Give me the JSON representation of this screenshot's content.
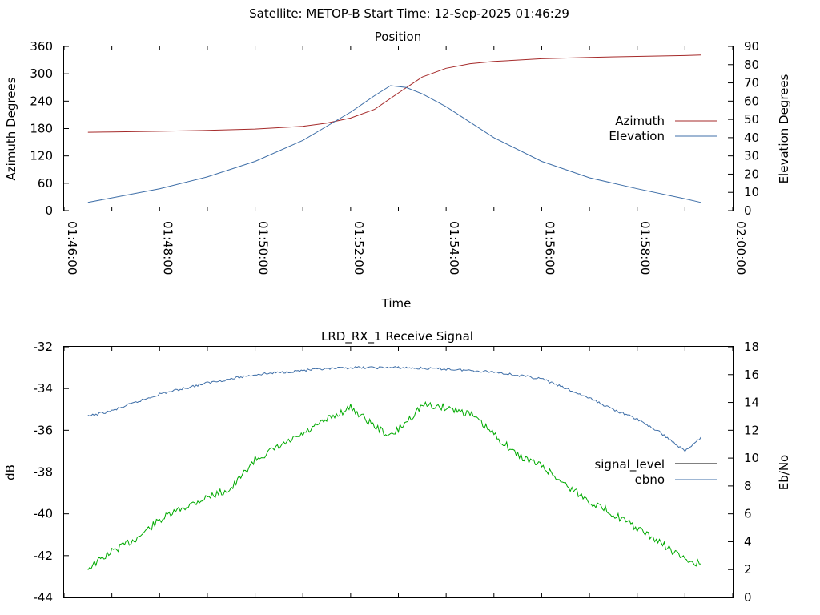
{
  "header": {
    "title": "Satellite: METOP-B    Start Time: 12-Sep-2025 01:46:29"
  },
  "chart_data": [
    {
      "type": "line",
      "title": "Position",
      "xlabel": "Time",
      "ylabel": "Azimuth Degrees",
      "y2label": "Elevation Degrees",
      "xlim": [
        "01:46:00",
        "02:00:00"
      ],
      "ylim": [
        0,
        360
      ],
      "y2lim": [
        0,
        90
      ],
      "yticks": [
        "0",
        "60",
        "120",
        "180",
        "240",
        "300",
        "360"
      ],
      "y2ticks": [
        "0",
        "10",
        "20",
        "30",
        "40",
        "50",
        "60",
        "70",
        "80",
        "90"
      ],
      "xticks": [
        "01:46:00",
        "01:48:00",
        "01:50:00",
        "01:52:00",
        "01:54:00",
        "01:56:00",
        "01:58:00",
        "02:00:00"
      ],
      "legend_position": "right",
      "series": [
        {
          "name": "Azimuth",
          "axis": "left",
          "color": "#a52a2a",
          "points": [
            [
              "01:46:30",
              172
            ],
            [
              "01:47:00",
              172.5
            ],
            [
              "01:48:00",
              174
            ],
            [
              "01:49:00",
              176
            ],
            [
              "01:50:00",
              179
            ],
            [
              "01:51:00",
              185
            ],
            [
              "01:51:30",
              192
            ],
            [
              "01:52:00",
              203
            ],
            [
              "01:52:30",
              222
            ],
            [
              "01:53:00",
              258
            ],
            [
              "01:53:30",
              293
            ],
            [
              "01:54:00",
              312
            ],
            [
              "01:54:30",
              322
            ],
            [
              "01:55:00",
              327
            ],
            [
              "01:56:00",
              333
            ],
            [
              "01:57:00",
              336
            ],
            [
              "01:58:00",
              338
            ],
            [
              "01:59:00",
              340
            ],
            [
              "01:59:20",
              341
            ]
          ]
        },
        {
          "name": "Elevation",
          "axis": "right",
          "color": "#3f6fa8",
          "points": [
            [
              "01:46:30",
              4.5
            ],
            [
              "01:47:00",
              7
            ],
            [
              "01:48:00",
              12
            ],
            [
              "01:49:00",
              18.5
            ],
            [
              "01:50:00",
              27
            ],
            [
              "01:51:00",
              38.5
            ],
            [
              "01:52:00",
              54
            ],
            [
              "01:52:30",
              63
            ],
            [
              "01:52:50",
              68.5
            ],
            [
              "01:53:10",
              67.5
            ],
            [
              "01:53:30",
              64
            ],
            [
              "01:54:00",
              57
            ],
            [
              "01:55:00",
              40
            ],
            [
              "01:56:00",
              27
            ],
            [
              "01:57:00",
              18
            ],
            [
              "01:58:00",
              12
            ],
            [
              "01:59:00",
              6.5
            ],
            [
              "01:59:20",
              4.5
            ]
          ]
        }
      ]
    },
    {
      "type": "line",
      "title": "LRD_RX_1 Receive Signal",
      "xlabel": "",
      "ylabel": "dB",
      "y2label": "Eb/No",
      "ylim": [
        -44,
        -32
      ],
      "y2lim": [
        0,
        18
      ],
      "yticks": [
        "-44",
        "-42",
        "-40",
        "-38",
        "-36",
        "-34",
        "-32"
      ],
      "y2ticks": [
        "0",
        "2",
        "4",
        "6",
        "8",
        "10",
        "12",
        "14",
        "16",
        "18"
      ],
      "legend_position": "right",
      "series": [
        {
          "name": "signal_level",
          "axis": "left",
          "color": "#00aa00",
          "legend_color": "#000000",
          "points": [
            [
              "01:46:30",
              -42.6
            ],
            [
              "01:47:00",
              -41.8
            ],
            [
              "01:47:30",
              -41.2
            ],
            [
              "01:48:00",
              -40.3
            ],
            [
              "01:48:30",
              -39.7
            ],
            [
              "01:49:00",
              -39.2
            ],
            [
              "01:49:30",
              -38.8
            ],
            [
              "01:50:00",
              -37.4
            ],
            [
              "01:50:30",
              -36.8
            ],
            [
              "01:51:00",
              -36.2
            ],
            [
              "01:51:30",
              -35.5
            ],
            [
              "01:52:00",
              -34.9
            ],
            [
              "01:52:30",
              -35.8
            ],
            [
              "01:52:50",
              -36.3
            ],
            [
              "01:53:10",
              -35.6
            ],
            [
              "01:53:30",
              -34.8
            ],
            [
              "01:54:00",
              -34.9
            ],
            [
              "01:54:30",
              -35.2
            ],
            [
              "01:55:00",
              -36.2
            ],
            [
              "01:55:30",
              -37.2
            ],
            [
              "01:56:00",
              -37.7
            ],
            [
              "01:56:30",
              -38.6
            ],
            [
              "01:57:00",
              -39.4
            ],
            [
              "01:57:30",
              -40.0
            ],
            [
              "01:58:00",
              -40.7
            ],
            [
              "01:58:30",
              -41.4
            ],
            [
              "01:59:00",
              -42.2
            ],
            [
              "01:59:20",
              -42.4
            ]
          ]
        },
        {
          "name": "ebno",
          "axis": "right",
          "color": "#3f6fa8",
          "points": [
            [
              "01:46:30",
              13
            ],
            [
              "01:47:00",
              13.4
            ],
            [
              "01:47:30",
              14.0
            ],
            [
              "01:48:00",
              14.6
            ],
            [
              "01:48:30",
              15.0
            ],
            [
              "01:49:00",
              15.4
            ],
            [
              "01:49:30",
              15.7
            ],
            [
              "01:50:00",
              16.0
            ],
            [
              "01:51:00",
              16.3
            ],
            [
              "01:52:00",
              16.5
            ],
            [
              "01:53:00",
              16.5
            ],
            [
              "01:54:00",
              16.4
            ],
            [
              "01:55:00",
              16.2
            ],
            [
              "01:56:00",
              15.7
            ],
            [
              "01:56:30",
              15.0
            ],
            [
              "01:57:00",
              14.3
            ],
            [
              "01:57:30",
              13.5
            ],
            [
              "01:58:00",
              12.8
            ],
            [
              "01:58:30",
              11.8
            ],
            [
              "01:59:00",
              10.5
            ],
            [
              "01:59:20",
              11.5
            ]
          ]
        }
      ]
    }
  ]
}
